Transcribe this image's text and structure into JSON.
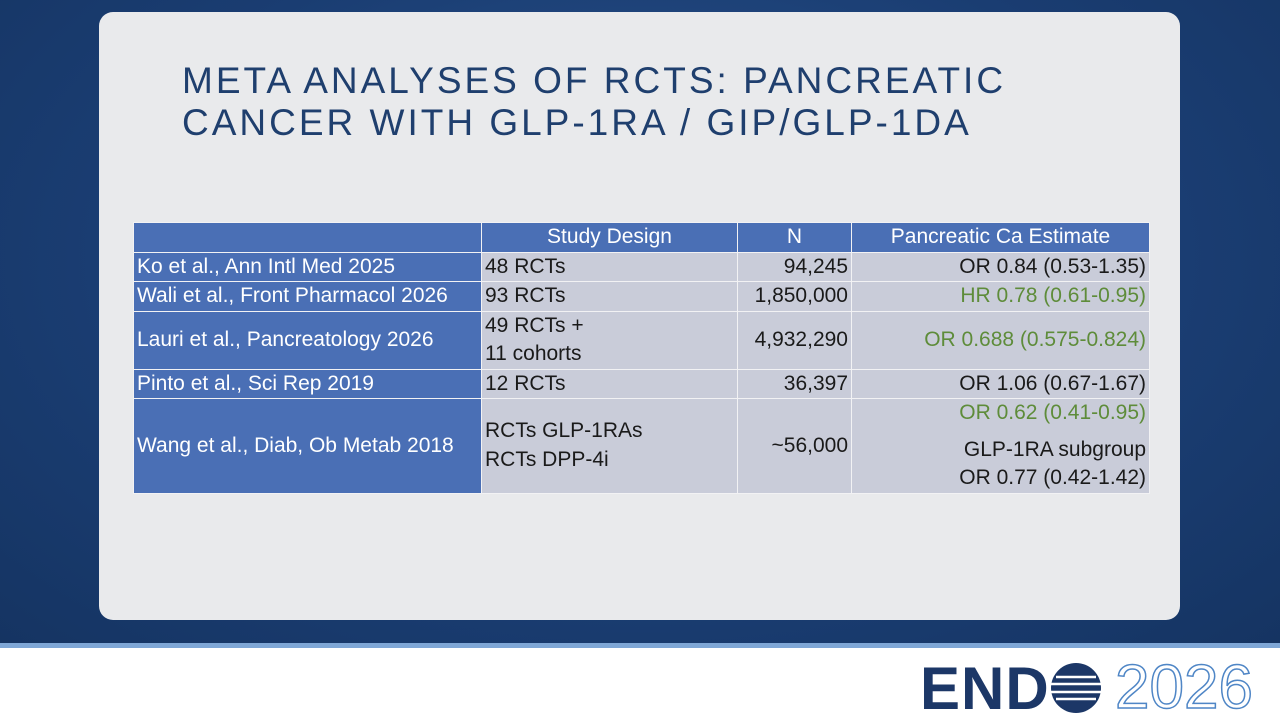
{
  "slide": {
    "title_lines": [
      "META ANALYSES OF RCTS: PANCREATIC",
      "CANCER WITH GLP-1RA / GIP/GLP-1DA"
    ],
    "table": {
      "header": [
        "Study Design",
        "N",
        "Pancreatic Ca Estimate"
      ],
      "rows": [
        {
          "study": "Ko et al., Ann Intl Med 2025",
          "design": [
            "48 RCTs"
          ],
          "n": "94,245",
          "estimate": [
            {
              "text": "OR 0.84 (0.53-1.35)",
              "color": "#1a1a1a"
            }
          ]
        },
        {
          "study": "Wali et al., Front Pharmacol 2026",
          "design": [
            "93 RCTs"
          ],
          "n": "1,850,000",
          "estimate": [
            {
              "text": "HR 0.78 (0.61-0.95)",
              "color": "#5e8c3a"
            }
          ]
        },
        {
          "study": "Lauri et al., Pancreatology 2026",
          "design": [
            "49 RCTs +",
            "11 cohorts"
          ],
          "n": "4,932,290",
          "estimate": [
            {
              "text": "OR 0.688 (0.575-0.824)",
              "color": "#5e8c3a"
            }
          ]
        },
        {
          "study": "Pinto et al., Sci Rep 2019",
          "design": [
            "12 RCTs"
          ],
          "n": "36,397",
          "estimate": [
            {
              "text": "OR 1.06 (0.67-1.67)",
              "color": "#1a1a1a"
            }
          ]
        },
        {
          "study": "Wang et al., Diab, Ob Metab 2018",
          "design": [
            "RCTs GLP-1RAs",
            "RCTs DPP-4i"
          ],
          "n": "~56,000",
          "estimate": [
            {
              "text": "OR 0.62 (0.41-0.95)",
              "color": "#5e8c3a"
            },
            {
              "text": "GLP-1RA subgroup",
              "color": "#1a1a1a"
            },
            {
              "text": "OR 0.77 (0.42-1.42)",
              "color": "#1a1a1a"
            }
          ]
        }
      ]
    },
    "logo": {
      "left": "END",
      "right": "2026"
    }
  }
}
